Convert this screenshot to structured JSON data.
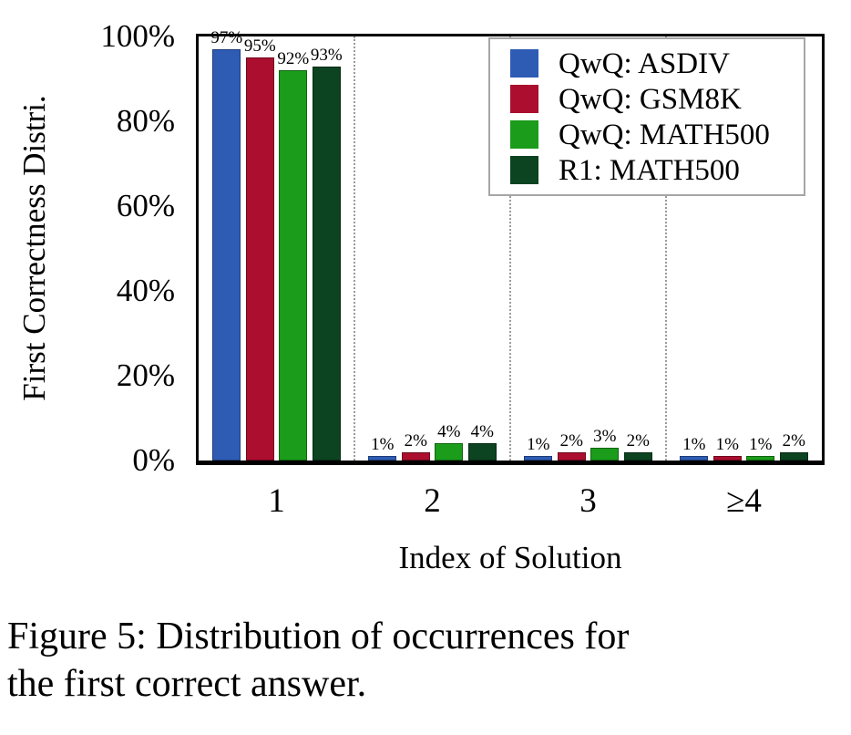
{
  "figure": {
    "caption_line1": "Figure 5: Distribution of occurrences for",
    "caption_line2": "the first correct answer."
  },
  "chart_data": {
    "type": "bar",
    "title": "",
    "xlabel": "Index of Solution",
    "ylabel": "First Correctness Distri.",
    "categories": [
      "1",
      "2",
      "3",
      "≥4"
    ],
    "series": [
      {
        "name": "QwQ: ASDIV",
        "color": "#2e5cb5",
        "values": [
          97,
          1,
          1,
          1
        ]
      },
      {
        "name": "QwQ: GSM8K",
        "color": "#ab0e2f",
        "values": [
          95,
          2,
          2,
          1
        ]
      },
      {
        "name": "QwQ: MATH500",
        "color": "#1b9c1b",
        "values": [
          92,
          4,
          3,
          1
        ]
      },
      {
        "name": "R1: MATH500",
        "color": "#0c4320",
        "values": [
          93,
          4,
          2,
          2
        ]
      }
    ],
    "yticks": [
      "0%",
      "20%",
      "40%",
      "60%",
      "80%",
      "100%"
    ],
    "ylim": [
      0,
      100
    ],
    "bar_label_suffix": "%",
    "legend_position": "upper right",
    "grid": "dotted vertical separators between categories"
  }
}
